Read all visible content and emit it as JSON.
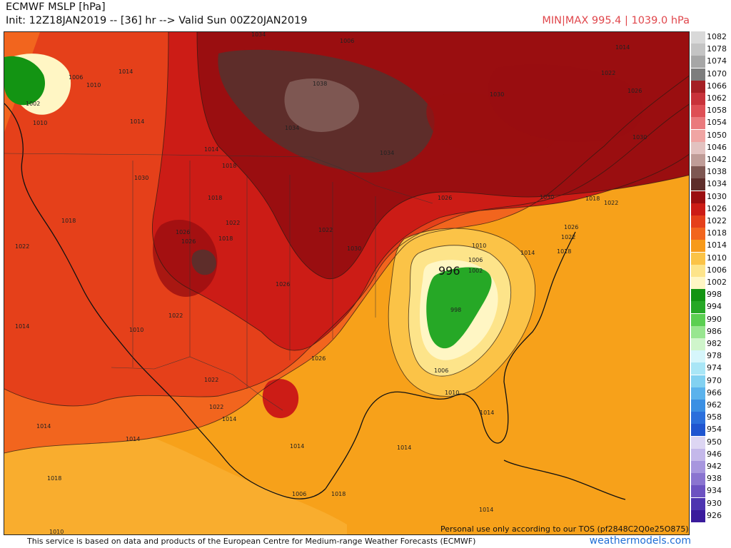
{
  "header": {
    "title": "ECMWF MSLP [hPa]",
    "init": "Init: 12Z18JAN2019 -- [36] hr --> Valid Sun 00Z20JAN2019",
    "minmax": "MIN|MAX 995.4 | 1039.0 hPa"
  },
  "map": {
    "low_center_label": "996",
    "terms_notice": "Personal use only according to our TOS (pf2848C2Q0e25O875)",
    "isobar_labels": [
      "1034",
      "1038",
      "1034",
      "1034",
      "1030",
      "1030",
      "1026",
      "1022",
      "1014",
      "1030",
      "1026",
      "1026",
      "1022",
      "1018",
      "1014",
      "1010",
      "1006",
      "1002",
      "998",
      "1006",
      "1010",
      "1014",
      "1022",
      "1018",
      "1014",
      "1010",
      "1022",
      "1026",
      "1022",
      "1018",
      "1022",
      "1026",
      "1030",
      "1026",
      "1030",
      "1022",
      "1022",
      "1018",
      "1018",
      "1014",
      "1014",
      "1022",
      "1018",
      "1014",
      "1026",
      "1010",
      "1006",
      "1002",
      "1006",
      "1010",
      "1014",
      "1014",
      "1018",
      "1014",
      "1014",
      "1014",
      "1010",
      "1006",
      "1014",
      "1018"
    ]
  },
  "colorbar": {
    "levels": [
      {
        "label": "1082",
        "color": "#d9d9d9"
      },
      {
        "label": "1078",
        "color": "#c4c4c4"
      },
      {
        "label": "1074",
        "color": "#a6a6a6"
      },
      {
        "label": "1070",
        "color": "#7d7d7d"
      },
      {
        "label": "1066",
        "color": "#a51f24"
      },
      {
        "label": "1062",
        "color": "#c8323a"
      },
      {
        "label": "1058",
        "color": "#de4f55"
      },
      {
        "label": "1054",
        "color": "#ea7a7d"
      },
      {
        "label": "1050",
        "color": "#f0a5a3"
      },
      {
        "label": "1046",
        "color": "#e2c2c0"
      },
      {
        "label": "1042",
        "color": "#bf9c97"
      },
      {
        "label": "1038",
        "color": "#7e5752"
      },
      {
        "label": "1034",
        "color": "#5e2d2a"
      },
      {
        "label": "1030",
        "color": "#9a0e10"
      },
      {
        "label": "1026",
        "color": "#cc1c16"
      },
      {
        "label": "1022",
        "color": "#e5401a"
      },
      {
        "label": "1018",
        "color": "#f2651e"
      },
      {
        "label": "1014",
        "color": "#f79a1a"
      },
      {
        "label": "1010",
        "color": "#fbc347"
      },
      {
        "label": "1006",
        "color": "#fde48a"
      },
      {
        "label": "1002",
        "color": "#fff6c4"
      },
      {
        "label": "998",
        "color": "#139413"
      },
      {
        "label": "994",
        "color": "#26a826"
      },
      {
        "label": "990",
        "color": "#5bcf52"
      },
      {
        "label": "986",
        "color": "#98e690"
      },
      {
        "label": "982",
        "color": "#cff5cb"
      },
      {
        "label": "978",
        "color": "#d6f6fb"
      },
      {
        "label": "974",
        "color": "#a9e6f6"
      },
      {
        "label": "970",
        "color": "#82d1f1"
      },
      {
        "label": "966",
        "color": "#5ab2ec"
      },
      {
        "label": "962",
        "color": "#3a8fe3"
      },
      {
        "label": "958",
        "color": "#2b6fdc"
      },
      {
        "label": "954",
        "color": "#1f55d0"
      },
      {
        "label": "950",
        "color": "#ddd6f3"
      },
      {
        "label": "946",
        "color": "#c4b8ea"
      },
      {
        "label": "942",
        "color": "#a796de"
      },
      {
        "label": "938",
        "color": "#8a74d0"
      },
      {
        "label": "934",
        "color": "#6c52c1"
      },
      {
        "label": "930",
        "color": "#4d34b0"
      },
      {
        "label": "926",
        "color": "#3a1b9c"
      }
    ]
  },
  "footer": {
    "disclaimer": "This service is based on data and products of the European Centre for Medium-range Weather Forecasts (ECMWF)",
    "brand": "weathermodels.com"
  }
}
